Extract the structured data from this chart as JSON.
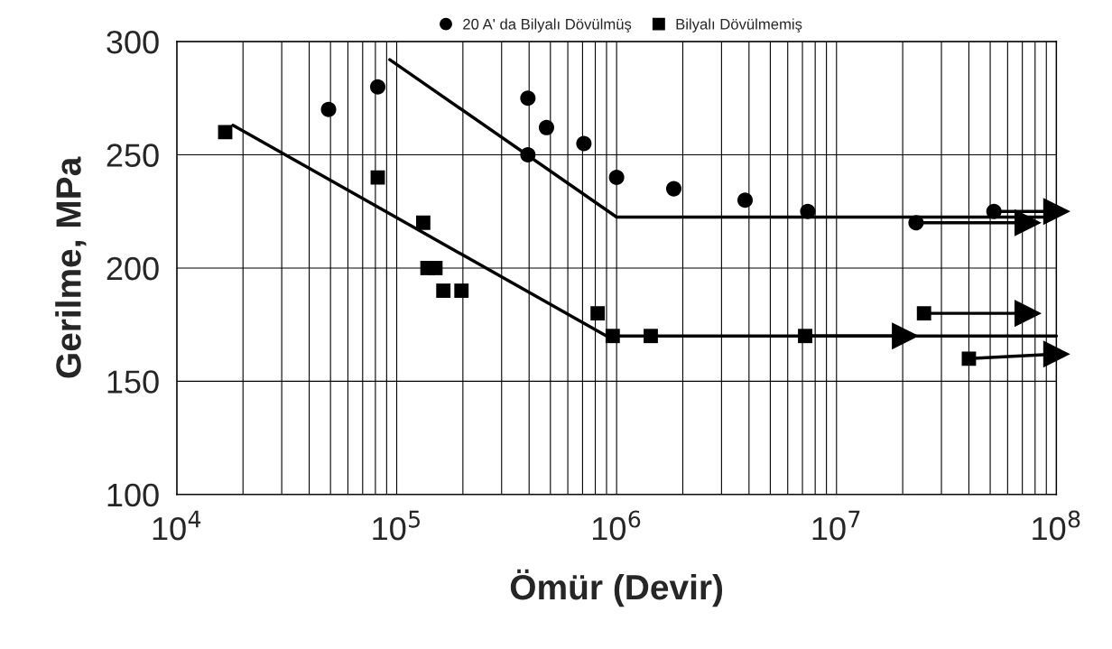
{
  "chart_data": {
    "type": "scatter",
    "xlabel": "Ömür (Devir)",
    "ylabel": "Gerilme, MPa",
    "log": "x",
    "grid": true,
    "legend": "top",
    "xlim": [
      10000,
      100000000
    ],
    "xticks": [
      {
        "value": 10000,
        "label": "10$^{4}$"
      },
      {
        "value": 100000,
        "label": "10$^{5}$"
      },
      {
        "value": 1000000,
        "label": "10$^{6}$"
      },
      {
        "value": 10000000,
        "label": "10$^{7}$"
      },
      {
        "value": 100000000,
        "label": "10$^{8}$"
      }
    ],
    "ylim": [
      100,
      300
    ],
    "yticks": [
      100,
      150,
      200,
      250,
      300
    ],
    "series": [
      {
        "name": "20 A' da Bilyalı Dövülmüş",
        "marker": "circle",
        "color": "#000000",
        "x": [
          49000,
          82000,
          395000,
          480000,
          710000,
          395000,
          1000000,
          1820000,
          3840000,
          7400000,
          23000000,
          52000000
        ],
        "values": [
          270,
          280,
          275,
          262,
          255,
          250,
          240,
          235,
          230,
          225,
          220,
          225
        ]
      },
      {
        "name": "Bilyalı Dövülmemiş",
        "marker": "square",
        "color": "#000000",
        "x": [
          16600,
          82000,
          132000,
          138000,
          150000,
          163000,
          197000,
          820000,
          960000,
          1430000,
          7200000,
          25000000,
          40000000
        ],
        "values": [
          260,
          240,
          220,
          200,
          200,
          190,
          190,
          180,
          170,
          170,
          170,
          180,
          160
        ]
      },
      {
        "type": "line",
        "marker": "none",
        "color": "#000000",
        "x": [
          93000,
          1000000,
          87000000
        ],
        "values": [
          292,
          222.5,
          222.5
        ]
      },
      {
        "type": "line",
        "marker": "none",
        "color": "#000000",
        "x": [
          18000,
          900000,
          100000000
        ],
        "values": [
          263,
          170,
          170
        ]
      },
      {
        "type": "line",
        "marker": "triangle",
        "color": "#000000",
        "x": [
          23000000,
          74000000
        ],
        "values": [
          220,
          220
        ]
      },
      {
        "type": "line",
        "marker": "triangle",
        "color": "#000000",
        "x": [
          52000000,
          100000000
        ],
        "values": [
          225,
          225
        ]
      },
      {
        "type": "line",
        "marker": "triangle",
        "color": "#000000",
        "x": [
          7200000,
          20500000
        ],
        "values": [
          170,
          170
        ]
      },
      {
        "type": "line",
        "marker": "triangle",
        "color": "#000000",
        "x": [
          25000000,
          74000000
        ],
        "values": [
          180,
          180
        ]
      },
      {
        "type": "line",
        "marker": "triangle",
        "color": "#000000",
        "x": [
          40000000,
          100000000
        ],
        "values": [
          160,
          162
        ]
      }
    ]
  }
}
